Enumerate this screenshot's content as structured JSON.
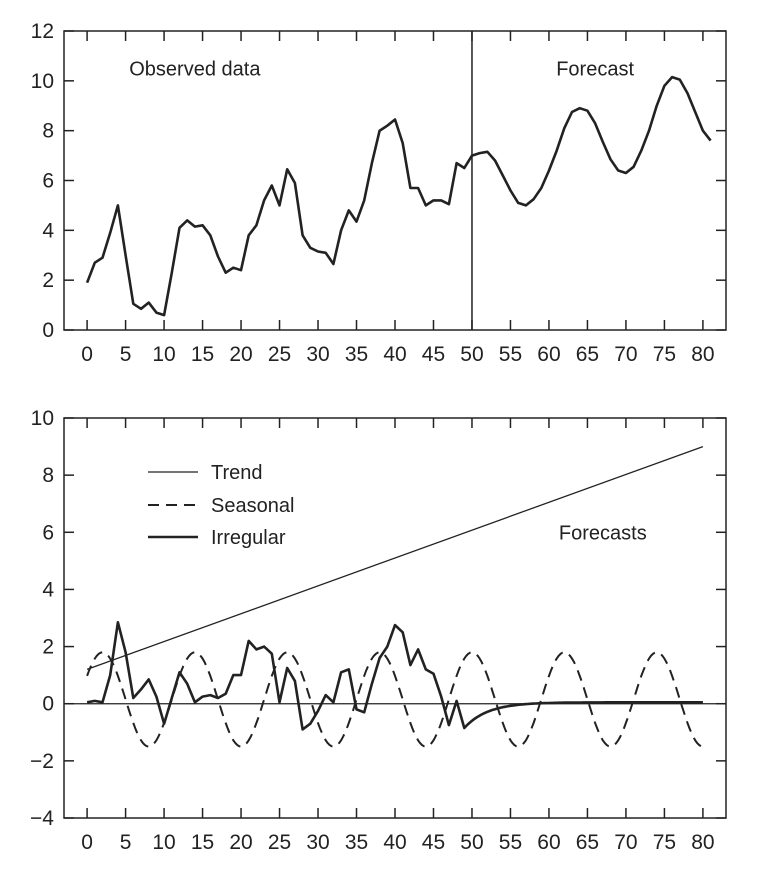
{
  "chart_data": [
    {
      "type": "line",
      "title": "",
      "xlabel": "",
      "ylabel": "",
      "xlim": [
        -3,
        83
      ],
      "ylim": [
        0,
        12
      ],
      "xticks": [
        0,
        5,
        10,
        15,
        20,
        25,
        30,
        35,
        40,
        45,
        50,
        55,
        60,
        65,
        70,
        75,
        80
      ],
      "yticks": [
        0,
        2,
        4,
        6,
        8,
        10,
        12
      ],
      "grid": false,
      "vline_x": 50,
      "annotations": [
        {
          "text": "Observed data",
          "x": 14,
          "y": 10.5
        },
        {
          "text": "Forecast",
          "x": 66,
          "y": 10.5
        }
      ],
      "series": [
        {
          "style": "solid",
          "points": [
            [
              0,
              1.9
            ],
            [
              1,
              2.7
            ],
            [
              2,
              2.9
            ],
            [
              3,
              3.9
            ],
            [
              4,
              5.0
            ],
            [
              5,
              3.0
            ],
            [
              6,
              1.05
            ],
            [
              7,
              0.85
            ],
            [
              8,
              1.1
            ],
            [
              9,
              0.7
            ],
            [
              10,
              0.6
            ],
            [
              11,
              2.3
            ],
            [
              12,
              4.1
            ],
            [
              13,
              4.4
            ],
            [
              14,
              4.15
            ],
            [
              15,
              4.2
            ],
            [
              16,
              3.8
            ],
            [
              17,
              2.95
            ],
            [
              18,
              2.3
            ],
            [
              19,
              2.5
            ],
            [
              20,
              2.4
            ],
            [
              21,
              3.8
            ],
            [
              22,
              4.2
            ],
            [
              23,
              5.2
            ],
            [
              24,
              5.8
            ],
            [
              25,
              5.0
            ],
            [
              26,
              6.45
            ],
            [
              27,
              5.9
            ],
            [
              28,
              3.8
            ],
            [
              29,
              3.3
            ],
            [
              30,
              3.15
            ],
            [
              31,
              3.1
            ],
            [
              32,
              2.65
            ],
            [
              33,
              4.0
            ],
            [
              34,
              4.8
            ],
            [
              35,
              4.35
            ],
            [
              36,
              5.2
            ],
            [
              37,
              6.7
            ],
            [
              38,
              8.0
            ],
            [
              39,
              8.2
            ],
            [
              40,
              8.45
            ],
            [
              41,
              7.5
            ],
            [
              42,
              5.7
            ],
            [
              43,
              5.7
            ],
            [
              44,
              5.0
            ],
            [
              45,
              5.2
            ],
            [
              46,
              5.2
            ],
            [
              47,
              5.05
            ],
            [
              48,
              6.7
            ],
            [
              49,
              6.5
            ],
            [
              50,
              7.0
            ],
            [
              51,
              7.1
            ],
            [
              52,
              7.15
            ],
            [
              53,
              6.8
            ],
            [
              54,
              6.2
            ],
            [
              55,
              5.6
            ],
            [
              56,
              5.1
            ],
            [
              57,
              5.0
            ],
            [
              58,
              5.25
            ],
            [
              59,
              5.7
            ],
            [
              60,
              6.4
            ],
            [
              61,
              7.2
            ],
            [
              62,
              8.1
            ],
            [
              63,
              8.75
            ],
            [
              64,
              8.9
            ],
            [
              65,
              8.8
            ],
            [
              66,
              8.3
            ],
            [
              67,
              7.55
            ],
            [
              68,
              6.85
            ],
            [
              69,
              6.4
            ],
            [
              70,
              6.3
            ],
            [
              71,
              6.55
            ],
            [
              72,
              7.2
            ],
            [
              73,
              8.0
            ],
            [
              74,
              9.0
            ],
            [
              75,
              9.8
            ],
            [
              76,
              10.15
            ],
            [
              77,
              10.05
            ],
            [
              78,
              9.5
            ],
            [
              79,
              8.75
            ],
            [
              80,
              8.0
            ],
            [
              81,
              7.6
            ]
          ]
        }
      ]
    },
    {
      "type": "line",
      "title": "",
      "xlabel": "",
      "ylabel": "",
      "xlim": [
        -3,
        83
      ],
      "ylim": [
        -4,
        10
      ],
      "xticks": [
        0,
        5,
        10,
        15,
        20,
        25,
        30,
        35,
        40,
        45,
        50,
        55,
        60,
        65,
        70,
        75,
        80
      ],
      "yticks": [
        -4,
        -2,
        0,
        2,
        4,
        6,
        8,
        10
      ],
      "grid": false,
      "hline_y": 0,
      "legend_position": "top-left",
      "annotations": [
        {
          "text": "Forecasts",
          "x": 67,
          "y": 6
        }
      ],
      "series": [
        {
          "name": "Trend",
          "style": "thin",
          "points": [
            [
              0,
              1.2
            ],
            [
              80,
              9.0
            ]
          ]
        },
        {
          "name": "Seasonal",
          "style": "dashed",
          "period": 12,
          "mean": 0.15,
          "amplitude": 1.65,
          "peak_x": 2,
          "x_range": [
            0,
            80
          ]
        },
        {
          "name": "Irregular",
          "style": "solid",
          "points": [
            [
              0,
              0.05
            ],
            [
              1,
              0.1
            ],
            [
              2,
              0.05
            ],
            [
              3,
              1.0
            ],
            [
              4,
              2.85
            ],
            [
              5,
              1.8
            ],
            [
              6,
              0.2
            ],
            [
              7,
              0.5
            ],
            [
              8,
              0.85
            ],
            [
              9,
              0.25
            ],
            [
              10,
              -0.7
            ],
            [
              11,
              0.2
            ],
            [
              12,
              1.1
            ],
            [
              13,
              0.7
            ],
            [
              14,
              0.05
            ],
            [
              15,
              0.25
            ],
            [
              16,
              0.3
            ],
            [
              17,
              0.2
            ],
            [
              18,
              0.35
            ],
            [
              19,
              1.0
            ],
            [
              20,
              1.0
            ],
            [
              21,
              2.2
            ],
            [
              22,
              1.9
            ],
            [
              23,
              2.0
            ],
            [
              24,
              1.75
            ],
            [
              25,
              0.05
            ],
            [
              26,
              1.25
            ],
            [
              27,
              0.8
            ],
            [
              28,
              -0.9
            ],
            [
              29,
              -0.7
            ],
            [
              30,
              -0.25
            ],
            [
              31,
              0.3
            ],
            [
              32,
              0.05
            ],
            [
              33,
              1.1
            ],
            [
              34,
              1.2
            ],
            [
              35,
              -0.2
            ],
            [
              36,
              -0.3
            ],
            [
              37,
              0.7
            ],
            [
              38,
              1.6
            ],
            [
              39,
              2.0
            ],
            [
              40,
              2.75
            ],
            [
              41,
              2.5
            ],
            [
              42,
              1.35
            ],
            [
              43,
              1.9
            ],
            [
              44,
              1.2
            ],
            [
              45,
              1.05
            ],
            [
              46,
              0.25
            ],
            [
              47,
              -0.75
            ],
            [
              48,
              0.1
            ],
            [
              49,
              -0.85
            ]
          ],
          "forecast": {
            "decay_from": [
              49,
              -0.85
            ],
            "decay_rate": 0.33,
            "asymptote": 0.05,
            "x_end": 80
          }
        }
      ]
    }
  ]
}
